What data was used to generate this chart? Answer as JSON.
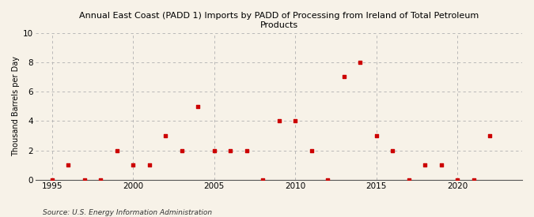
{
  "title": "Annual East Coast (PADD 1) Imports by PADD of Processing from Ireland of Total Petroleum Products",
  "ylabel": "Thousand Barrels per Day",
  "source": "Source: U.S. Energy Information Administration",
  "background_color": "#f7f2e8",
  "plot_background_color": "#f7f2e8",
  "marker_color": "#cc0000",
  "marker": "s",
  "marker_size": 3.5,
  "xlim": [
    1994,
    2024
  ],
  "ylim": [
    0,
    10
  ],
  "yticks": [
    0,
    2,
    4,
    6,
    8,
    10
  ],
  "xticks": [
    1995,
    2000,
    2005,
    2010,
    2015,
    2020
  ],
  "years": [
    1995,
    1996,
    1997,
    1998,
    1999,
    2000,
    2001,
    2002,
    2003,
    2004,
    2005,
    2006,
    2007,
    2008,
    2009,
    2010,
    2011,
    2012,
    2013,
    2014,
    2015,
    2016,
    2017,
    2018,
    2019,
    2020,
    2021,
    2022
  ],
  "values": [
    0,
    1,
    0,
    0,
    2,
    1,
    1,
    3,
    2,
    5,
    2,
    2,
    2,
    0,
    4,
    4,
    2,
    0,
    7,
    8,
    3,
    2,
    0,
    1,
    1,
    0,
    0,
    3
  ]
}
